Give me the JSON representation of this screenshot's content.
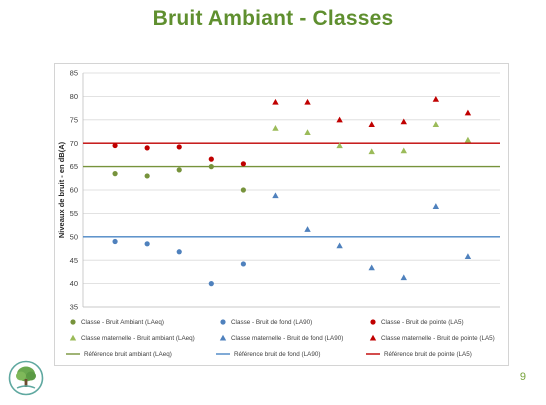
{
  "page": {
    "title": "Bruit Ambiant - Classes",
    "page_number": "9"
  },
  "colors": {
    "title": "#5f8f2f",
    "green": "#77933c",
    "blue": "#4f81bd",
    "red": "#c00000",
    "ref_green": "#77933c",
    "ref_blue": "#4a86c5",
    "ref_red": "#c00000"
  },
  "chart_data": {
    "type": "scatter",
    "title": "",
    "xlabel": "",
    "ylabel": "Niveaux de bruit - en dB(A)",
    "ylim": [
      35,
      85
    ],
    "yticks": [
      35,
      40,
      45,
      50,
      55,
      60,
      65,
      70,
      75,
      80,
      85
    ],
    "xlim": [
      0,
      13
    ],
    "grid": true,
    "legend_position": "bottom",
    "series": [
      {
        "name": "Classe - Bruit Ambiant (LAeq)",
        "marker": "circle",
        "color": "#77933c",
        "points": [
          [
            1,
            63.5
          ],
          [
            2,
            63
          ],
          [
            3,
            64.3
          ],
          [
            4,
            65
          ],
          [
            5,
            60
          ]
        ]
      },
      {
        "name": "Classe - Bruit de fond (LA90)",
        "marker": "circle",
        "color": "#4f81bd",
        "points": [
          [
            1,
            49
          ],
          [
            2,
            48.5
          ],
          [
            3,
            46.8
          ],
          [
            4,
            40
          ],
          [
            5,
            44.2
          ]
        ]
      },
      {
        "name": "Classe - Bruit de pointe (LA5)",
        "marker": "circle",
        "color": "#c00000",
        "points": [
          [
            1,
            69.5
          ],
          [
            2,
            69
          ],
          [
            3,
            69.2
          ],
          [
            4,
            66.6
          ],
          [
            5,
            65.6
          ]
        ]
      },
      {
        "name": "Classe maternelle - Bruit ambiant (LAeq)",
        "marker": "triangle",
        "color": "#9bbb59",
        "points": [
          [
            6,
            73.2
          ],
          [
            7,
            72.3
          ],
          [
            8,
            69.5
          ],
          [
            9,
            68.2
          ],
          [
            10,
            68.4
          ],
          [
            11,
            74
          ],
          [
            12,
            70.7
          ]
        ]
      },
      {
        "name": "Classe maternelle - Bruit de fond (LA90)",
        "marker": "triangle",
        "color": "#4f81bd",
        "points": [
          [
            6,
            58.8
          ],
          [
            7,
            51.6
          ],
          [
            8,
            48.1
          ],
          [
            9,
            43.4
          ],
          [
            10,
            41.3
          ],
          [
            11,
            56.5
          ],
          [
            12,
            45.8
          ]
        ]
      },
      {
        "name": "Classe maternelle - Bruit de pointe (LA5)",
        "marker": "triangle",
        "color": "#c00000",
        "points": [
          [
            6,
            78.8
          ],
          [
            7,
            78.8
          ],
          [
            8,
            75
          ],
          [
            9,
            74
          ],
          [
            10,
            74.6
          ],
          [
            11,
            79.4
          ],
          [
            12,
            76.5
          ]
        ]
      },
      {
        "name": "Référence bruit ambiant (LAeq)",
        "marker": "line",
        "color": "#77933c",
        "y": 65
      },
      {
        "name": "Référence bruit de fond (LA90)",
        "marker": "line",
        "color": "#4a86c5",
        "y": 50
      },
      {
        "name": "Référence bruit de pointe (LA5)",
        "marker": "line",
        "color": "#c00000",
        "y": 70
      }
    ]
  }
}
